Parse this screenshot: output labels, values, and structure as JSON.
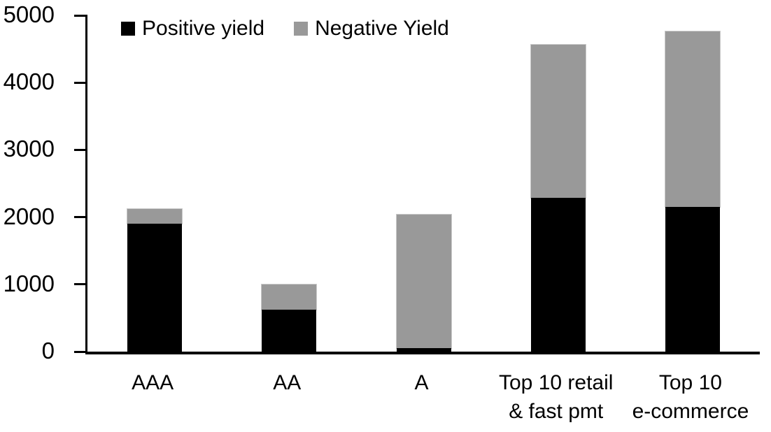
{
  "chart_data": {
    "type": "bar",
    "stacked": true,
    "title": "",
    "xlabel": "",
    "ylabel": "",
    "grid": false,
    "legend_position": "top-left-inside",
    "background_color": "#ffffff",
    "axis_color": "#000000",
    "ylim": [
      0,
      5000
    ],
    "yticks": [
      0,
      1000,
      2000,
      3000,
      4000,
      5000
    ],
    "categories": [
      "AAA",
      "AA",
      "A",
      "Top 10 retail\n& fast pmt",
      "Top 10\ne-commerce"
    ],
    "series": [
      {
        "name": "Positive yield",
        "color": "#000000",
        "values": [
          1900,
          620,
          50,
          2290,
          2150
        ]
      },
      {
        "name": "Negative Yield",
        "color": "#999999",
        "values": [
          220,
          380,
          1990,
          2270,
          2610
        ]
      }
    ],
    "totals": [
      2120,
      1000,
      2040,
      4560,
      4760
    ]
  }
}
